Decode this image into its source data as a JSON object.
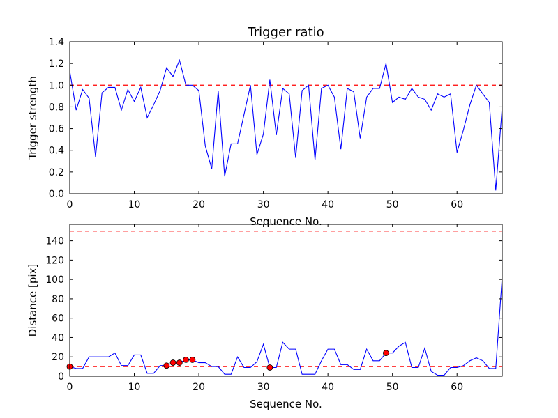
{
  "chart_data": [
    {
      "type": "line",
      "title": "Trigger ratio",
      "xlabel": "Sequence No.",
      "ylabel": "Trigger strength",
      "xlim": [
        0,
        67
      ],
      "ylim": [
        0.0,
        1.4
      ],
      "xticks": [
        "0",
        "10",
        "20",
        "30",
        "40",
        "50",
        "60"
      ],
      "yticks": [
        "0.0",
        "0.2",
        "0.4",
        "0.6",
        "0.8",
        "1.0",
        "1.2",
        "1.4"
      ],
      "grid": false,
      "series": [
        {
          "color": "#0000ff",
          "x": [
            0,
            1,
            2,
            3,
            4,
            5,
            6,
            7,
            8,
            9,
            10,
            11,
            12,
            13,
            14,
            15,
            16,
            17,
            18,
            19,
            20,
            21,
            22,
            23,
            24,
            25,
            26,
            27,
            28,
            29,
            30,
            31,
            32,
            33,
            34,
            35,
            36,
            37,
            38,
            39,
            40,
            41,
            42,
            43,
            44,
            45,
            46,
            47,
            48,
            49,
            50,
            51,
            52,
            53,
            54,
            55,
            56,
            57,
            58,
            59,
            60,
            61,
            62,
            63,
            64,
            65,
            66,
            67
          ],
          "y": [
            1.13,
            0.77,
            0.96,
            0.88,
            0.34,
            0.93,
            0.98,
            0.98,
            0.77,
            0.96,
            0.85,
            0.98,
            0.7,
            0.82,
            0.95,
            1.16,
            1.08,
            1.23,
            1.0,
            1.0,
            0.95,
            0.44,
            0.23,
            0.95,
            0.16,
            0.46,
            0.46,
            0.73,
            1.0,
            0.36,
            0.55,
            1.05,
            0.54,
            0.97,
            0.92,
            0.33,
            0.95,
            1.0,
            0.31,
            0.97,
            1.0,
            0.89,
            0.41,
            0.97,
            0.94,
            0.51,
            0.89,
            0.97,
            0.97,
            1.2,
            0.84,
            0.89,
            0.87,
            0.97,
            0.89,
            0.87,
            0.77,
            0.92,
            0.89,
            0.92,
            0.38,
            0.59,
            0.82,
            1.0,
            0.92,
            0.84,
            0.03,
            0.8
          ]
        }
      ],
      "reference_lines": [
        {
          "y": 1.0,
          "color": "#ff0000",
          "style": "dashed"
        }
      ]
    },
    {
      "type": "line",
      "title": "",
      "xlabel": "Sequence No.",
      "ylabel": "Distance [pix]",
      "xlim": [
        0,
        67
      ],
      "ylim": [
        0,
        157
      ],
      "xticks": [
        "0",
        "10",
        "20",
        "30",
        "40",
        "50",
        "60"
      ],
      "yticks": [
        "0",
        "20",
        "40",
        "60",
        "80",
        "100",
        "120",
        "140"
      ],
      "grid": false,
      "series": [
        {
          "color": "#0000ff",
          "x": [
            0,
            1,
            2,
            3,
            4,
            5,
            6,
            7,
            8,
            9,
            10,
            11,
            12,
            13,
            14,
            15,
            16,
            17,
            18,
            19,
            20,
            21,
            22,
            23,
            24,
            25,
            26,
            27,
            28,
            29,
            30,
            31,
            32,
            33,
            34,
            35,
            36,
            37,
            38,
            39,
            40,
            41,
            42,
            43,
            44,
            45,
            46,
            47,
            48,
            49,
            50,
            51,
            52,
            53,
            54,
            55,
            56,
            57,
            58,
            59,
            60,
            61,
            62,
            63,
            64,
            65,
            66,
            67
          ],
          "y": [
            10,
            8,
            8,
            20,
            20,
            20,
            20,
            24,
            11,
            11,
            22,
            22,
            3,
            3,
            11,
            11,
            14,
            14,
            17,
            17,
            14,
            14,
            10,
            10,
            2,
            2,
            20,
            9,
            9,
            15,
            33,
            9,
            9,
            35,
            28,
            28,
            2,
            2,
            2,
            16,
            28,
            28,
            12,
            12,
            7,
            7,
            28,
            16,
            16,
            24,
            24,
            31,
            35,
            9,
            9,
            29,
            5,
            1,
            1,
            9,
            9,
            11,
            16,
            19,
            16,
            8,
            8,
            103
          ]
        }
      ],
      "highlighted_points": {
        "color": "#ff0000",
        "x": [
          0,
          15,
          16,
          17,
          18,
          19,
          31,
          49
        ],
        "y": [
          10,
          11,
          14,
          14,
          17,
          17,
          9,
          24
        ]
      },
      "reference_lines": [
        {
          "y": 150,
          "color": "#ff0000",
          "style": "dashed"
        },
        {
          "y": 10,
          "color": "#ff0000",
          "style": "dashed"
        }
      ]
    }
  ]
}
